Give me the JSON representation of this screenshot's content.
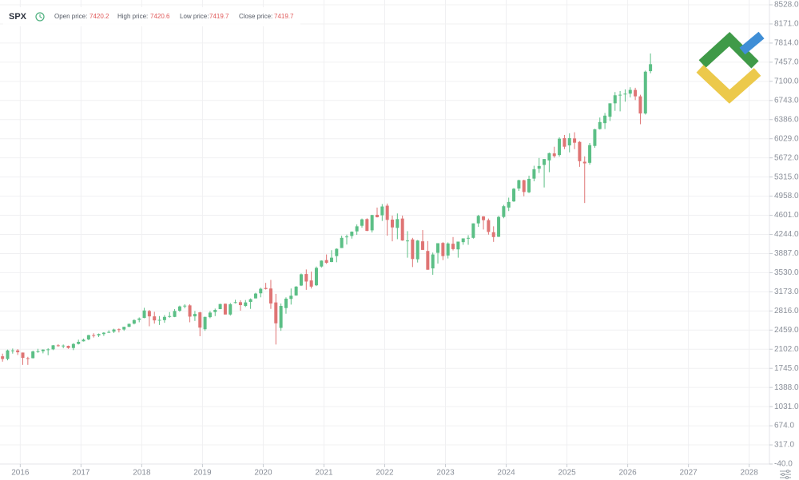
{
  "chart_data": {
    "type": "candlestick",
    "symbol": "SPX",
    "info": [
      {
        "label": "Open price:",
        "value": 7420.2
      },
      {
        "label": "High price:",
        "value": 7420.6
      },
      {
        "label": "Low price:",
        "value": 7419.7
      },
      {
        "label": "Close price:",
        "value": 7419.7
      }
    ],
    "up_color": "#5cbf86",
    "down_color": "#df7474",
    "grid": true,
    "xlim": [
      "2015-09",
      "2028-05"
    ],
    "xticks": [
      "2016",
      "2017",
      "2018",
      "2019",
      "2020",
      "2021",
      "2022",
      "2023",
      "2024",
      "2025",
      "2026",
      "2027",
      "2028"
    ],
    "ylim": [
      -40,
      8528
    ],
    "yticks": [
      {
        "value": 8528,
        "label": "8528.0"
      },
      {
        "value": 8171,
        "label": "8171.0"
      },
      {
        "value": 7814,
        "label": "7814.0"
      },
      {
        "value": 7457,
        "label": "7457.0"
      },
      {
        "value": 7100,
        "label": "7100.0"
      },
      {
        "value": 6743,
        "label": "6743.0"
      },
      {
        "value": 6386,
        "label": "6386.0"
      },
      {
        "value": 6029,
        "label": "6029.0"
      },
      {
        "value": 5672,
        "label": "5672.0"
      },
      {
        "value": 5315,
        "label": "5315.0"
      },
      {
        "value": 4958,
        "label": "4958.0"
      },
      {
        "value": 4601,
        "label": "4601.0"
      },
      {
        "value": 4244,
        "label": "4244.0"
      },
      {
        "value": 3887,
        "label": "3887.0"
      },
      {
        "value": 3530,
        "label": "3530.0"
      },
      {
        "value": 3173,
        "label": "3173.0"
      },
      {
        "value": 2816,
        "label": "2816.0"
      },
      {
        "value": 2459,
        "label": "2459.0"
      },
      {
        "value": 2102,
        "label": "2102.0"
      },
      {
        "value": 1745,
        "label": "1745.0"
      },
      {
        "value": 1388,
        "label": "1388.0"
      },
      {
        "value": 1031,
        "label": "1031.0"
      },
      {
        "value": 674,
        "label": "674.0"
      },
      {
        "value": 317,
        "label": "317.0"
      },
      {
        "value": -40,
        "label": "-40.0"
      }
    ],
    "x": [
      "2015-09",
      "2015-10",
      "2015-11",
      "2015-12",
      "2016-01",
      "2016-02",
      "2016-03",
      "2016-04",
      "2016-05",
      "2016-06",
      "2016-07",
      "2016-08",
      "2016-09",
      "2016-10",
      "2016-11",
      "2016-12",
      "2017-01",
      "2017-02",
      "2017-03",
      "2017-04",
      "2017-05",
      "2017-06",
      "2017-07",
      "2017-08",
      "2017-09",
      "2017-10",
      "2017-11",
      "2017-12",
      "2018-01",
      "2018-02",
      "2018-03",
      "2018-04",
      "2018-05",
      "2018-06",
      "2018-07",
      "2018-08",
      "2018-09",
      "2018-10",
      "2018-11",
      "2018-12",
      "2019-01",
      "2019-02",
      "2019-03",
      "2019-04",
      "2019-05",
      "2019-06",
      "2019-07",
      "2019-08",
      "2019-09",
      "2019-10",
      "2019-11",
      "2019-12",
      "2020-01",
      "2020-02",
      "2020-03",
      "2020-04",
      "2020-05",
      "2020-06",
      "2020-07",
      "2020-08",
      "2020-09",
      "2020-10",
      "2020-11",
      "2020-12",
      "2021-01",
      "2021-02",
      "2021-03",
      "2021-04",
      "2021-05",
      "2021-06",
      "2021-07",
      "2021-08",
      "2021-09",
      "2021-10",
      "2021-11",
      "2021-12",
      "2022-01",
      "2022-02",
      "2022-03",
      "2022-04",
      "2022-05",
      "2022-06",
      "2022-07",
      "2022-08",
      "2022-09",
      "2022-10",
      "2022-11",
      "2022-12",
      "2023-01",
      "2023-02",
      "2023-03",
      "2023-04",
      "2023-05",
      "2023-06",
      "2023-07",
      "2023-08",
      "2023-09",
      "2023-10",
      "2023-11",
      "2023-12",
      "2024-01",
      "2024-02",
      "2024-03",
      "2024-04",
      "2024-05",
      "2024-06",
      "2024-07",
      "2024-08",
      "2024-09",
      "2024-10",
      "2024-11",
      "2024-12",
      "2025-01",
      "2025-02",
      "2025-03",
      "2025-04",
      "2025-05",
      "2025-06",
      "2025-07",
      "2025-08",
      "2025-09",
      "2025-10",
      "2025-11",
      "2025-12",
      "2026-01",
      "2026-02",
      "2026-03",
      "2026-04",
      "2026-05"
    ],
    "open": [
      1970,
      1920,
      2080,
      2080,
      2040,
      1935,
      1935,
      2060,
      2065,
      2095,
      2100,
      2175,
      2170,
      2165,
      2125,
      2200,
      2250,
      2285,
      2365,
      2360,
      2385,
      2410,
      2430,
      2475,
      2470,
      2520,
      2580,
      2650,
      2685,
      2815,
      2715,
      2635,
      2645,
      2705,
      2705,
      2820,
      2900,
      2920,
      2715,
      2790,
      2475,
      2700,
      2795,
      2850,
      2950,
      2750,
      2970,
      2980,
      2910,
      2985,
      3050,
      3145,
      3245,
      3235,
      2975,
      2500,
      2870,
      3040,
      3105,
      3290,
      3505,
      3385,
      3295,
      3645,
      3765,
      3730,
      3840,
      3990,
      4190,
      4215,
      4300,
      4405,
      4530,
      4320,
      4610,
      4600,
      4780,
      4520,
      4365,
      4540,
      4130,
      4150,
      3780,
      4115,
      3935,
      3610,
      3900,
      4085,
      3850,
      4070,
      3965,
      4100,
      4165,
      4180,
      4450,
      4580,
      4510,
      4285,
      4200,
      4570,
      4745,
      4860,
      5100,
      5255,
      5030,
      5285,
      5470,
      5540,
      5625,
      5755,
      5725,
      6040,
      5905,
      6035,
      5970,
      5600,
      5580,
      5895,
      6210,
      6320,
      6440,
      6690,
      6850,
      6860,
      6870,
      6940,
      6820,
      6500,
      7290
    ],
    "high": [
      2020,
      2095,
      2115,
      2105,
      2040,
      1960,
      2075,
      2110,
      2100,
      2120,
      2180,
      2195,
      2190,
      2170,
      2215,
      2280,
      2300,
      2370,
      2400,
      2395,
      2420,
      2455,
      2485,
      2490,
      2520,
      2580,
      2660,
      2695,
      2875,
      2835,
      2800,
      2720,
      2740,
      2795,
      2850,
      2915,
      2940,
      2940,
      2815,
      2800,
      2710,
      2815,
      2860,
      2950,
      2955,
      2965,
      3025,
      3015,
      3020,
      3050,
      3155,
      3250,
      3340,
      3395,
      3135,
      2955,
      3070,
      3235,
      3280,
      3515,
      3590,
      3550,
      3645,
      3760,
      3870,
      3950,
      3985,
      4220,
      4240,
      4300,
      4430,
      4540,
      4545,
      4610,
      4745,
      4810,
      4820,
      4595,
      4635,
      4595,
      4305,
      4180,
      4140,
      4325,
      4120,
      3905,
      4080,
      4100,
      4095,
      4195,
      4110,
      4170,
      4230,
      4450,
      4610,
      4585,
      4540,
      4395,
      4590,
      4795,
      4930,
      5110,
      5265,
      5265,
      5340,
      5525,
      5670,
      5650,
      5770,
      5880,
      6055,
      6100,
      6130,
      6150,
      5985,
      5700,
      5950,
      6215,
      6425,
      6510,
      6690,
      6900,
      6920,
      6950,
      6990,
      6980,
      6850,
      7300,
      7620
    ],
    "low": [
      1870,
      1895,
      2020,
      1995,
      1810,
      1810,
      1930,
      2035,
      2025,
      1990,
      2085,
      2150,
      2120,
      2110,
      2085,
      2190,
      2245,
      2270,
      2320,
      2330,
      2350,
      2405,
      2405,
      2415,
      2445,
      2515,
      2565,
      2605,
      2680,
      2530,
      2580,
      2555,
      2595,
      2690,
      2700,
      2800,
      2865,
      2605,
      2630,
      2345,
      2445,
      2680,
      2720,
      2850,
      2750,
      2730,
      2955,
      2820,
      2890,
      2855,
      3050,
      3070,
      3215,
      2855,
      2190,
      2445,
      2765,
      2935,
      3100,
      3280,
      3210,
      3235,
      3280,
      3625,
      3695,
      3725,
      3725,
      3990,
      4055,
      4165,
      4235,
      4370,
      4305,
      4280,
      4560,
      4495,
      4220,
      4115,
      4155,
      4125,
      3810,
      3635,
      3720,
      3955,
      3585,
      3490,
      3700,
      3765,
      3795,
      3945,
      3810,
      4050,
      4050,
      4165,
      4385,
      4335,
      4240,
      4105,
      4195,
      4545,
      4680,
      4850,
      5055,
      4955,
      5015,
      5235,
      5390,
      5120,
      5405,
      5675,
      5695,
      5835,
      5775,
      5835,
      5505,
      4830,
      5545,
      5860,
      6200,
      6210,
      6360,
      6550,
      6540,
      6720,
      6800,
      6750,
      6300,
      6480,
      7250
    ],
    "close": [
      1920,
      2080,
      2080,
      2045,
      1940,
      1930,
      2060,
      2065,
      2095,
      2100,
      2175,
      2170,
      2170,
      2125,
      2200,
      2240,
      2280,
      2365,
      2360,
      2385,
      2410,
      2425,
      2470,
      2470,
      2520,
      2575,
      2645,
      2675,
      2825,
      2715,
      2640,
      2650,
      2705,
      2720,
      2815,
      2900,
      2915,
      2710,
      2760,
      2505,
      2705,
      2785,
      2835,
      2945,
      2750,
      2940,
      2980,
      2925,
      2975,
      3035,
      3140,
      3230,
      3225,
      2955,
      2585,
      2910,
      3045,
      3100,
      3270,
      3500,
      3365,
      3270,
      3620,
      3755,
      3715,
      3810,
      3975,
      4180,
      4205,
      4295,
      4395,
      4525,
      4310,
      4605,
      4565,
      4765,
      4515,
      4375,
      4530,
      4130,
      4130,
      3785,
      4130,
      3955,
      3585,
      3870,
      4080,
      3840,
      4075,
      3970,
      4110,
      4170,
      4180,
      4450,
      4590,
      4510,
      4290,
      4195,
      4570,
      4770,
      4850,
      5095,
      5255,
      5035,
      5280,
      5460,
      5520,
      5650,
      5760,
      5705,
      6030,
      5880,
      6040,
      5955,
      5610,
      5570,
      5910,
      6205,
      6340,
      6460,
      6690,
      6840,
      6850,
      6870,
      6940,
      6820,
      6500,
      7280,
      7420
    ]
  }
}
